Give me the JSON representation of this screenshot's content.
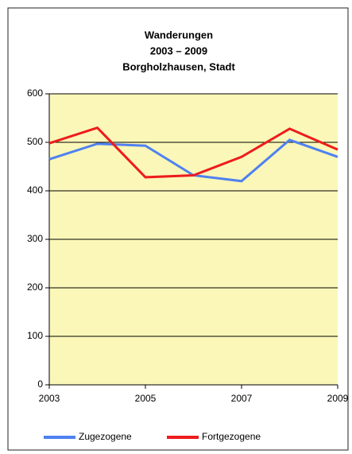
{
  "chart_data": {
    "type": "line",
    "title": [
      "Wanderungen",
      "2003 – 2009",
      "Borgholzhausen, Stadt"
    ],
    "x": [
      2003,
      2004,
      2005,
      2006,
      2007,
      2008,
      2009
    ],
    "xlim": [
      2003,
      2009
    ],
    "xticks": [
      2003,
      2005,
      2007,
      2009
    ],
    "ylim": [
      0,
      600
    ],
    "yticks": [
      0,
      100,
      200,
      300,
      400,
      500,
      600
    ],
    "grid": true,
    "legend": "bottom",
    "series": [
      {
        "name": "Zugezogene",
        "color": "#4f81f0",
        "values": [
          465,
          497,
          493,
          432,
          420,
          505,
          470
        ]
      },
      {
        "name": "Fortgezogene",
        "color": "#ee1c1c",
        "values": [
          498,
          530,
          428,
          432,
          470,
          528,
          485
        ]
      }
    ]
  }
}
